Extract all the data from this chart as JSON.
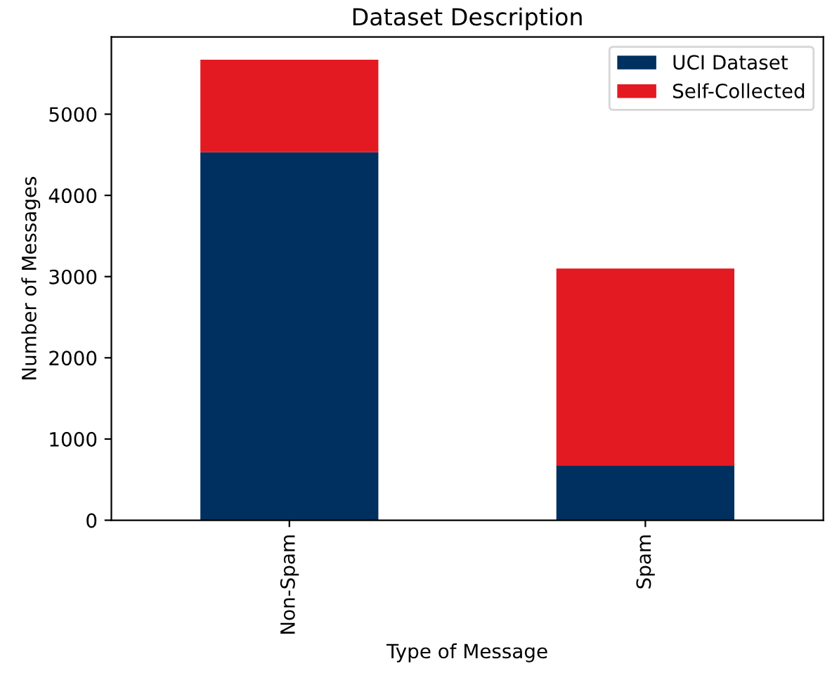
{
  "chart_data": {
    "type": "bar",
    "title": "Dataset Description",
    "xlabel": "Type of Message",
    "ylabel": "Number of Messages",
    "categories": [
      "Non-Spam",
      "Spam"
    ],
    "stacked": true,
    "series": [
      {
        "name": "UCI Dataset",
        "color": "#00305f",
        "values": [
          4530,
          670
        ]
      },
      {
        "name": "Self-Collected",
        "color": "#e31a22",
        "values": [
          1140,
          2430
        ]
      }
    ],
    "ylim": [
      0,
      5950
    ],
    "yticks": [
      0,
      1000,
      2000,
      3000,
      4000,
      5000
    ],
    "grid": false,
    "legend": "top right"
  }
}
